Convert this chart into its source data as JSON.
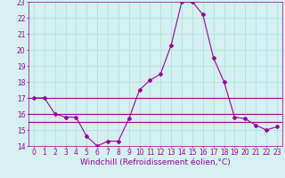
{
  "xlabel": "Windchill (Refroidissement éolien,°C)",
  "hours": [
    0,
    1,
    2,
    3,
    4,
    5,
    6,
    7,
    8,
    9,
    10,
    11,
    12,
    13,
    14,
    15,
    16,
    17,
    18,
    19,
    20,
    21,
    22,
    23
  ],
  "windchill": [
    17.0,
    17.0,
    16.0,
    15.8,
    15.8,
    14.6,
    14.0,
    14.3,
    14.3,
    15.7,
    17.5,
    18.1,
    18.5,
    20.3,
    23.0,
    23.0,
    22.2,
    19.5,
    18.0,
    15.8,
    15.7,
    15.3,
    15.0,
    15.2
  ],
  "ref_line1_y": 17.0,
  "ref_line2_y": 16.0,
  "ref_line3_y": 15.5,
  "line_color": "#990099",
  "bg_color": "#d4f0f0",
  "grid_color": "#aadddd",
  "ylim": [
    14,
    23
  ],
  "yticks": [
    14,
    15,
    16,
    17,
    18,
    19,
    20,
    21,
    22,
    23
  ],
  "xticks": [
    0,
    1,
    2,
    3,
    4,
    5,
    6,
    7,
    8,
    9,
    10,
    11,
    12,
    13,
    14,
    15,
    16,
    17,
    18,
    19,
    20,
    21,
    22,
    23
  ],
  "xlabel_fontsize": 6.5,
  "tick_fontsize": 5.5,
  "marker": "D",
  "markersize": 2.0,
  "linewidth": 0.8,
  "ref_linewidth": 0.8
}
